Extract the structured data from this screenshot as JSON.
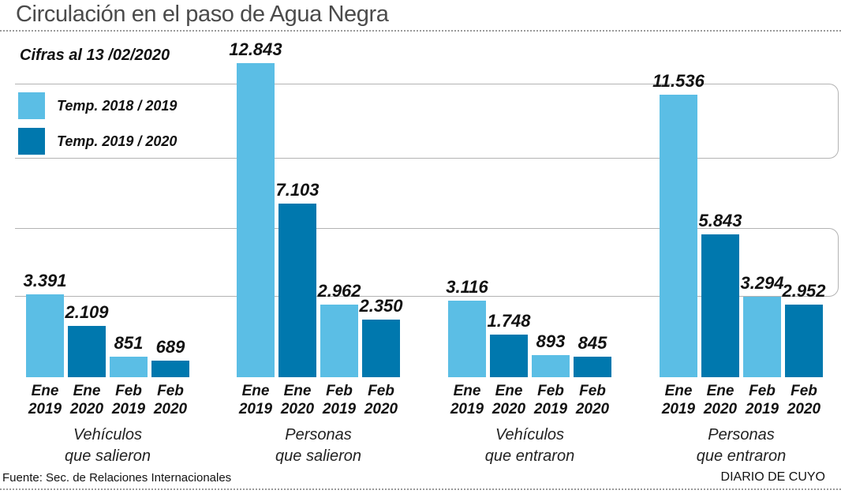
{
  "header": {
    "title": "Circulación en el paso de Agua Negra",
    "subtitle": "Cifras al 13 /02/2020"
  },
  "legend": [
    {
      "label": "Temp. 2018 / 2019",
      "color": "#5BBEE5"
    },
    {
      "label": "Temp. 2019 / 2020",
      "color": "#0078AE"
    }
  ],
  "footer": {
    "source": "Fuente: Sec. de Relaciones Internacionales",
    "credit": "DIARIO DE CUYO"
  },
  "chart_data": {
    "type": "bar",
    "title": "Circulación en el paso de Agua Negra",
    "subtitle": "Cifras al 13 /02/2020",
    "legend_position": "top-left",
    "grid": "horizontal-bands",
    "ylim": [
      0,
      13000
    ],
    "series_names": [
      "Temp. 2018 / 2019",
      "Temp. 2019 / 2020"
    ],
    "colors": [
      "#5BBEE5",
      "#0078AE"
    ],
    "groups": [
      {
        "label_lines": [
          "Vehículos",
          "que salieron"
        ],
        "bars": [
          {
            "tick": [
              "Ene",
              "2019"
            ],
            "series": 0,
            "value": 3391,
            "display": "3.391"
          },
          {
            "tick": [
              "Ene",
              "2020"
            ],
            "series": 1,
            "value": 2109,
            "display": "2.109"
          },
          {
            "tick": [
              "Feb",
              "2019"
            ],
            "series": 0,
            "value": 851,
            "display": "851"
          },
          {
            "tick": [
              "Feb",
              "2020"
            ],
            "series": 1,
            "value": 689,
            "display": "689"
          }
        ]
      },
      {
        "label_lines": [
          "Personas",
          "que salieron"
        ],
        "bars": [
          {
            "tick": [
              "Ene",
              "2019"
            ],
            "series": 0,
            "value": 12843,
            "display": "12.843"
          },
          {
            "tick": [
              "Ene",
              "2020"
            ],
            "series": 1,
            "value": 7103,
            "display": "7.103"
          },
          {
            "tick": [
              "Feb",
              "2019"
            ],
            "series": 0,
            "value": 2962,
            "display": "2.962"
          },
          {
            "tick": [
              "Feb",
              "2020"
            ],
            "series": 1,
            "value": 2350,
            "display": "2.350"
          }
        ]
      },
      {
        "label_lines": [
          "Vehículos",
          "que entraron"
        ],
        "bars": [
          {
            "tick": [
              "Ene",
              "2019"
            ],
            "series": 0,
            "value": 3116,
            "display": "3.116"
          },
          {
            "tick": [
              "Ene",
              "2020"
            ],
            "series": 1,
            "value": 1748,
            "display": "1.748"
          },
          {
            "tick": [
              "Feb",
              "2019"
            ],
            "series": 0,
            "value": 893,
            "display": "893"
          },
          {
            "tick": [
              "Feb",
              "2020"
            ],
            "series": 1,
            "value": 845,
            "display": "845"
          }
        ]
      },
      {
        "label_lines": [
          "Personas",
          "que entraron"
        ],
        "bars": [
          {
            "tick": [
              "Ene",
              "2019"
            ],
            "series": 0,
            "value": 11536,
            "display": "11.536"
          },
          {
            "tick": [
              "Ene",
              "2020"
            ],
            "series": 1,
            "value": 5843,
            "display": "5.843"
          },
          {
            "tick": [
              "Feb",
              "2019"
            ],
            "series": 0,
            "value": 3294,
            "display": "3.294"
          },
          {
            "tick": [
              "Feb",
              "2020"
            ],
            "series": 1,
            "value": 2952,
            "display": "2.952"
          }
        ]
      }
    ]
  }
}
